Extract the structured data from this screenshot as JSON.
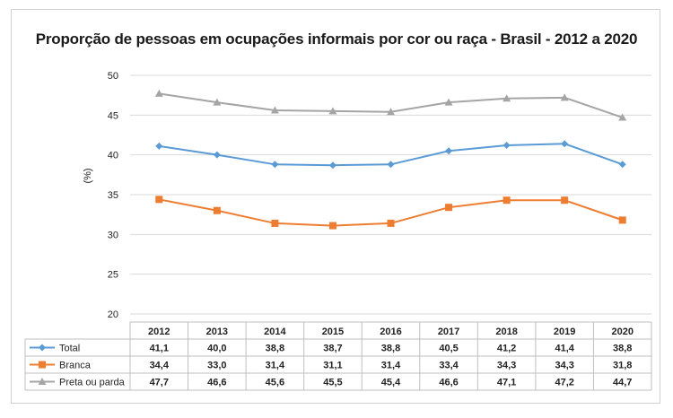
{
  "chart_data": {
    "type": "line",
    "title": "Proporção de pessoas em ocupações informais por cor ou raça - Brasil - 2012 a 2020",
    "ylabel": "(%)",
    "ylim": [
      20,
      50
    ],
    "yticks": [
      "20",
      "25",
      "30",
      "35",
      "40",
      "45",
      "50"
    ],
    "grid": true,
    "categories": [
      "2012",
      "2013",
      "2014",
      "2015",
      "2016",
      "2017",
      "2018",
      "2019",
      "2020"
    ],
    "series": [
      {
        "name": "Total",
        "color": "#5b9bd5",
        "marker": "diamond",
        "values": [
          41.1,
          40.0,
          38.8,
          38.7,
          38.8,
          40.5,
          41.2,
          41.4,
          38.8
        ],
        "labels": [
          "41,1",
          "40,0",
          "38,8",
          "38,7",
          "38,8",
          "40,5",
          "41,2",
          "41,4",
          "38,8"
        ]
      },
      {
        "name": "Branca",
        "color": "#ed7d31",
        "marker": "square",
        "values": [
          34.4,
          33.0,
          31.4,
          31.1,
          31.4,
          33.4,
          34.3,
          34.3,
          31.8
        ],
        "labels": [
          "34,4",
          "33,0",
          "31,4",
          "31,1",
          "31,4",
          "33,4",
          "34,3",
          "34,3",
          "31,8"
        ]
      },
      {
        "name": "Preta ou parda",
        "color": "#a5a5a5",
        "marker": "triangle",
        "values": [
          47.7,
          46.6,
          45.6,
          45.5,
          45.4,
          46.6,
          47.1,
          47.2,
          44.7
        ],
        "labels": [
          "47,7",
          "46,6",
          "45,6",
          "45,5",
          "45,4",
          "46,6",
          "47,1",
          "47,2",
          "44,7"
        ]
      }
    ]
  }
}
